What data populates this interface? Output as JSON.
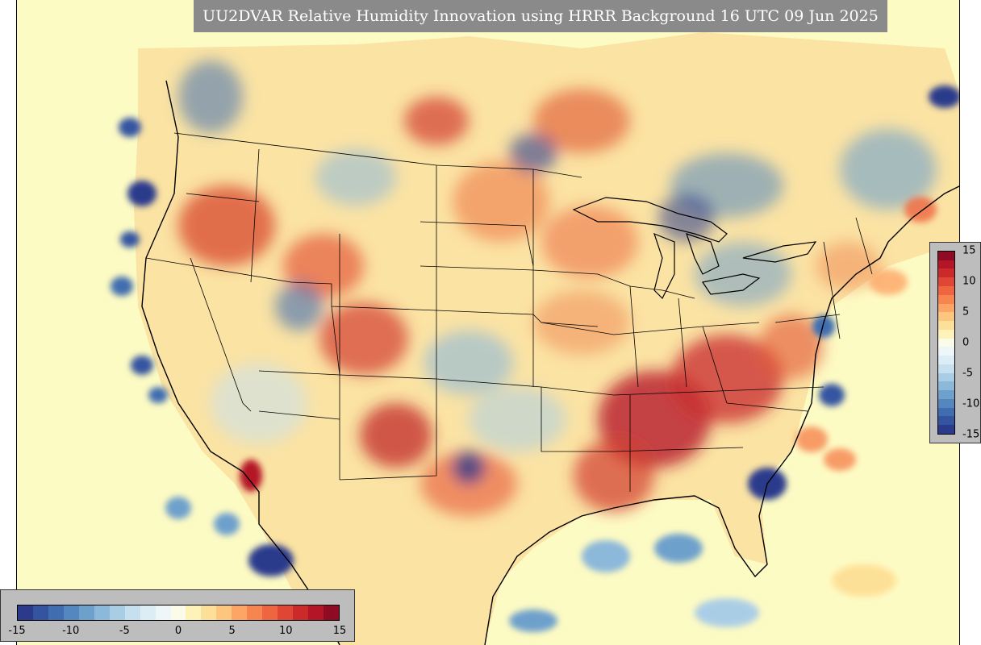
{
  "title": "UU2DVAR Relative Humidity Innovation using HRRR Background 16 UTC 09 Jun 2025",
  "colorbar": {
    "min": -15,
    "max": 15,
    "ticks": [
      "-15",
      "-10",
      "-5",
      "0",
      "5",
      "10",
      "15"
    ],
    "colors": [
      "#2c3a8c",
      "#3454a0",
      "#3f6db0",
      "#5487bf",
      "#6ea0cc",
      "#8cb8da",
      "#aacde6",
      "#c6e0ef",
      "#dcedf5",
      "#eef6f8",
      "#fbfbe9",
      "#fdf2b8",
      "#fde097",
      "#fdc67e",
      "#fca565",
      "#f6854f",
      "#ee6540",
      "#df4634",
      "#cc2a2a",
      "#b41627",
      "#8f0b24"
    ]
  },
  "map": {
    "icons": [
      "map-frame",
      "state-borders",
      "coastline"
    ]
  }
}
